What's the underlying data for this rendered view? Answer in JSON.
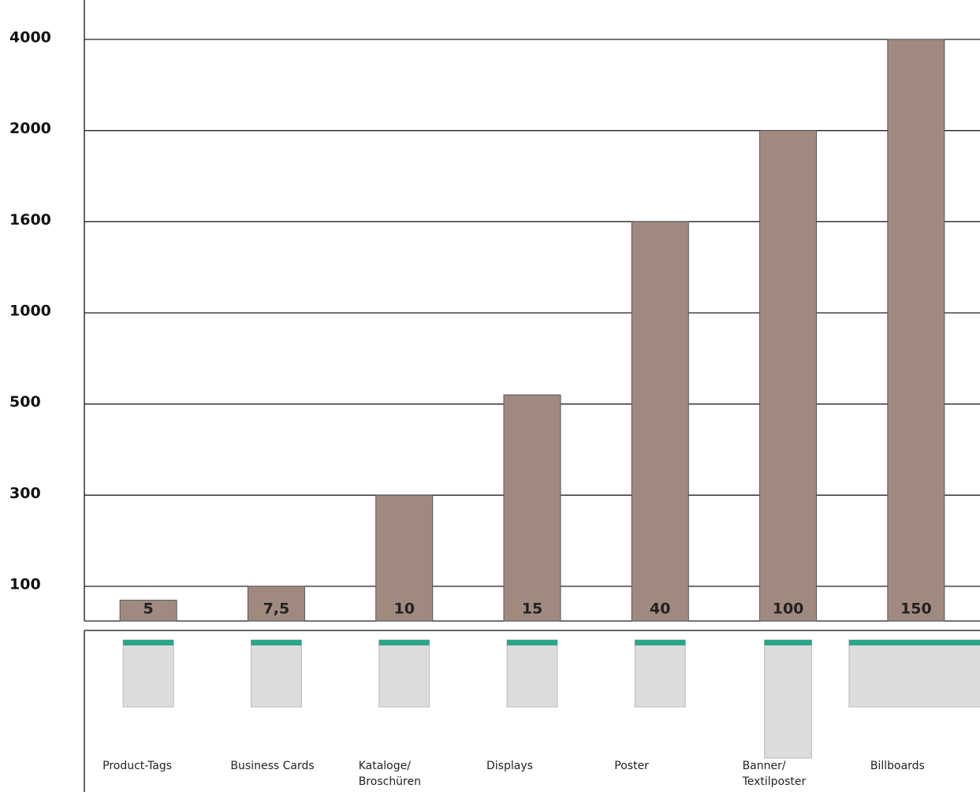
{
  "chart_data": {
    "type": "bar",
    "categories": [
      "Product-Tags",
      "Business Cards",
      "Kataloge/\nBroschüren",
      "Displays",
      "Poster",
      "Banner/\nTextilposter",
      "Billboards"
    ],
    "values": [
      60,
      100,
      300,
      550,
      1600,
      2000,
      4000
    ],
    "bar_texts": [
      "5",
      "7,5",
      "10",
      "15",
      "40",
      "100",
      "150"
    ],
    "color": "#a08a80",
    "ylim": [
      0,
      4000
    ],
    "yticks": [
      100,
      300,
      500,
      1000,
      1600,
      2000,
      4000
    ],
    "grid": true
  }
}
